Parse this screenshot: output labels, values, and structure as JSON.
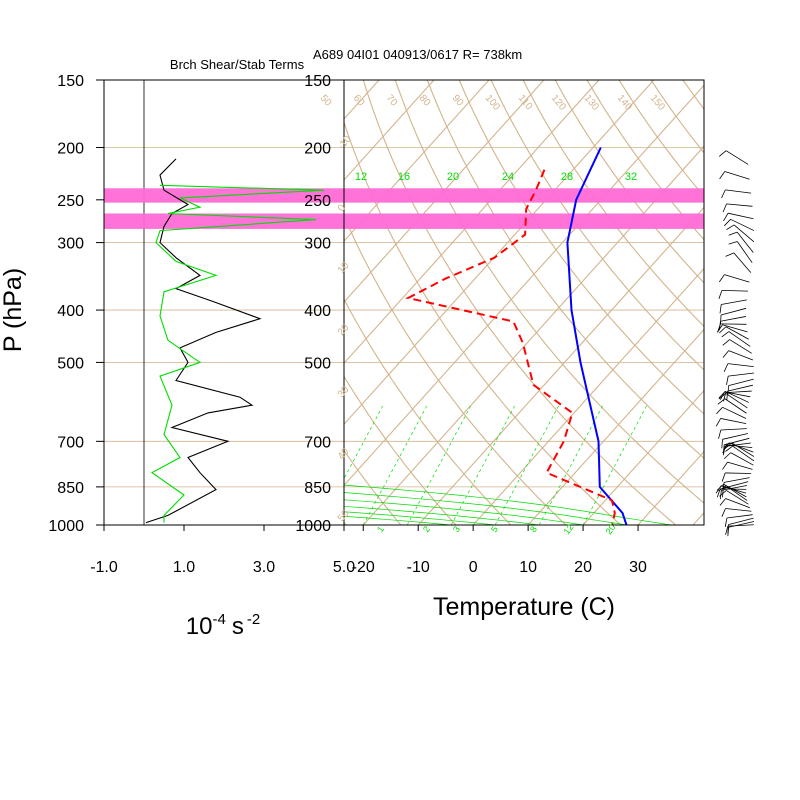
{
  "chart_data": [
    {
      "type": "line",
      "title": "Brch Shear/Stab Terms",
      "xlabel": "10",
      "xlabel_exp": "-4",
      "xlabel_unit": "s",
      "xlabel_unit_exp": "-2",
      "ylabel": "P (hPa)",
      "x_ticks": [
        "-1.0",
        "1.0",
        "3.0",
        "5.0"
      ],
      "xlim": [
        -1.0,
        5.0
      ],
      "y_ticks": [
        "150",
        "200",
        "250",
        "300",
        "400",
        "500",
        "700",
        "850",
        "1000"
      ],
      "ylim": [
        150,
        1000
      ],
      "y_scale": "log",
      "series": [
        {
          "color": "#000000",
          "points": [
            [
              0.8,
              210
            ],
            [
              0.4,
              225
            ],
            [
              0.5,
              240
            ],
            [
              1.1,
              255
            ],
            [
              0.7,
              265
            ],
            [
              0.5,
              280
            ],
            [
              0.4,
              300
            ],
            [
              0.8,
              320
            ],
            [
              1.4,
              345
            ],
            [
              0.8,
              365
            ],
            [
              1.7,
              385
            ],
            [
              2.9,
              415
            ],
            [
              1.8,
              440
            ],
            [
              0.9,
              470
            ],
            [
              1.1,
              500
            ],
            [
              0.8,
              540
            ],
            [
              2.4,
              580
            ],
            [
              2.7,
              600
            ],
            [
              1.6,
              620
            ],
            [
              0.7,
              660
            ],
            [
              2.1,
              700
            ],
            [
              1.1,
              750
            ],
            [
              1.4,
              800
            ],
            [
              1.8,
              860
            ],
            [
              0.6,
              960
            ],
            [
              0.05,
              990
            ]
          ]
        },
        {
          "color": "#00dd00",
          "points": [
            [
              0.4,
              235
            ],
            [
              4.5,
              240
            ],
            [
              0.9,
              248
            ],
            [
              1.4,
              258
            ],
            [
              0.6,
              265
            ],
            [
              4.3,
              272
            ],
            [
              0.4,
              285
            ],
            [
              0.3,
              300
            ],
            [
              0.8,
              325
            ],
            [
              1.8,
              345
            ],
            [
              0.5,
              370
            ],
            [
              0.4,
              410
            ],
            [
              0.6,
              455
            ],
            [
              1.4,
              500
            ],
            [
              0.4,
              530
            ],
            [
              0.7,
              600
            ],
            [
              0.5,
              680
            ],
            [
              0.9,
              750
            ],
            [
              0.2,
              800
            ],
            [
              1.0,
              880
            ],
            [
              0.5,
              960
            ],
            [
              0.5,
              990
            ]
          ]
        }
      ]
    },
    {
      "type": "line",
      "title": "A689 04I01 040913/0617 R= 738km",
      "xlabel": "Temperature (C)",
      "x_ticks": [
        "-20",
        "-10",
        "0",
        "10",
        "20",
        "30"
      ],
      "xlim": [
        -23.5,
        42
      ],
      "y_ticks": [
        "150",
        "200",
        "250",
        "300",
        "400",
        "500",
        "700",
        "850",
        "1000"
      ],
      "ylim": [
        150,
        1000
      ],
      "y_scale": "log",
      "skew_t": true,
      "isotherm_labels": [
        "-10",
        "0",
        "10",
        "20",
        "30",
        "40",
        "50"
      ],
      "dry_adiabat_labels": [
        "150",
        "140",
        "130",
        "120",
        "110",
        "100",
        "90",
        "80",
        "70",
        "60",
        "50"
      ],
      "moist_adiabat_labels": [
        "12",
        "16",
        "20",
        "24",
        "28",
        "32"
      ],
      "mixing_ratio_labels": [
        "1",
        "2",
        "3",
        "5",
        "8",
        "12",
        "20"
      ],
      "series": [
        {
          "name": "",
          "color": "#0000ff",
          "style": "solid",
          "points": [
            [
              -38.6,
              200
            ],
            [
              -34.5,
              250
            ],
            [
              -29.1,
              300
            ],
            [
              -17.3,
              400
            ],
            [
              -7.1,
              500
            ],
            [
              9.1,
              700
            ],
            [
              16.8,
              850
            ],
            [
              25.2,
              950
            ],
            [
              27.9,
              1000
            ]
          ]
        },
        {
          "name": "",
          "color": "#ff0000",
          "style": "dashed",
          "points": [
            [
              -45.2,
              220
            ],
            [
              -43.4,
              240
            ],
            [
              -42.1,
              260
            ],
            [
              -38.1,
              290
            ],
            [
              -39.9,
              320
            ],
            [
              -45.4,
              350
            ],
            [
              -49.0,
              380
            ],
            [
              -26.0,
              420
            ],
            [
              -20.8,
              460
            ],
            [
              -12.0,
              550
            ],
            [
              -0.3,
              620
            ],
            [
              2.8,
              700
            ],
            [
              4.8,
              800
            ],
            [
              21.2,
              900
            ],
            [
              23.8,
              950
            ],
            [
              25.3,
              1000
            ]
          ]
        }
      ]
    }
  ],
  "highlight_bands": [
    {
      "color": "#ff6ad5",
      "p_top": 238,
      "p_bottom": 253
    },
    {
      "color": "#ff6ad5",
      "p_top": 265,
      "p_bottom": 283
    }
  ],
  "colors": {
    "grid": "#d2b48c",
    "text": "#000000",
    "green": "#00dd00"
  }
}
